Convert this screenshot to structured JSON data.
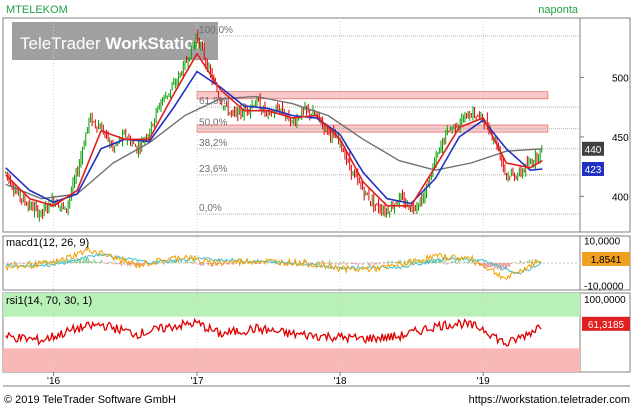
{
  "header": {
    "symbol": "MTELEKOM",
    "interval": "naponta"
  },
  "watermark": {
    "prefix": "TeleTrader ",
    "bold": "WorkStation"
  },
  "footer": {
    "copyright": "© 2019 TeleTrader Software GmbH",
    "url": "https://workstation.teletrader.com"
  },
  "colors": {
    "price_up": "#00a000",
    "price_down": "#e00000",
    "ma_fast": "#e02020",
    "ma_mid": "#2030c0",
    "ma_slow": "#707070",
    "fib_zone": "#f8c8c8",
    "rsi_upper_zone": "#b8f0b8",
    "rsi_lower_zone": "#f8b8b8",
    "rsi_line": "#e00000",
    "macd_line": "#f0a000",
    "signal_line": "#40c0d0"
  },
  "chart_data": [
    {
      "type": "candlestick",
      "title": "MTELEKOM",
      "x_ticks": [
        "'16",
        "'17",
        "'18",
        "'19"
      ],
      "ylim": [
        370,
        550
      ],
      "y_ticks": [
        400,
        450,
        500
      ],
      "price_path": [
        [
          "2015-09-01",
          420
        ],
        [
          "2015-10-01",
          402
        ],
        [
          "2015-11-01",
          392
        ],
        [
          "2015-12-01",
          385
        ],
        [
          "2016-01-01",
          398
        ],
        [
          "2016-02-01",
          388
        ],
        [
          "2016-03-01",
          420
        ],
        [
          "2016-04-01",
          465
        ],
        [
          "2016-05-01",
          458
        ],
        [
          "2016-06-01",
          440
        ],
        [
          "2016-07-01",
          452
        ],
        [
          "2016-08-01",
          440
        ],
        [
          "2016-09-01",
          455
        ],
        [
          "2016-10-01",
          480
        ],
        [
          "2016-11-01",
          492
        ],
        [
          "2016-12-01",
          510
        ],
        [
          "2017-01-01",
          535
        ],
        [
          "2017-02-01",
          505
        ],
        [
          "2017-03-01",
          482
        ],
        [
          "2017-04-01",
          468
        ],
        [
          "2017-05-01",
          472
        ],
        [
          "2017-06-01",
          480
        ],
        [
          "2017-07-01",
          468
        ],
        [
          "2017-08-01",
          474
        ],
        [
          "2017-09-01",
          462
        ],
        [
          "2017-10-01",
          472
        ],
        [
          "2017-11-01",
          468
        ],
        [
          "2017-12-01",
          455
        ],
        [
          "2018-01-01",
          445
        ],
        [
          "2018-02-01",
          420
        ],
        [
          "2018-03-01",
          405
        ],
        [
          "2018-04-01",
          392
        ],
        [
          "2018-05-01",
          388
        ],
        [
          "2018-06-01",
          398
        ],
        [
          "2018-07-01",
          390
        ],
        [
          "2018-08-01",
          398
        ],
        [
          "2018-09-01",
          430
        ],
        [
          "2018-10-01",
          455
        ],
        [
          "2018-11-01",
          462
        ],
        [
          "2018-12-01",
          470
        ],
        [
          "2019-01-01",
          465
        ],
        [
          "2019-02-01",
          448
        ],
        [
          "2019-03-01",
          418
        ],
        [
          "2019-04-01",
          418
        ],
        [
          "2019-05-01",
          428
        ],
        [
          "2019-06-01",
          440
        ]
      ],
      "ma_fast_path": [
        [
          "2015-09-01",
          418
        ],
        [
          "2015-11-01",
          398
        ],
        [
          "2016-01-01",
          392
        ],
        [
          "2016-03-01",
          405
        ],
        [
          "2016-05-01",
          455
        ],
        [
          "2016-07-01",
          448
        ],
        [
          "2016-09-01",
          448
        ],
        [
          "2016-11-01",
          485
        ],
        [
          "2017-01-01",
          520
        ],
        [
          "2017-03-01",
          490
        ],
        [
          "2017-05-01",
          472
        ],
        [
          "2017-07-01",
          472
        ],
        [
          "2017-09-01",
          466
        ],
        [
          "2017-11-01",
          468
        ],
        [
          "2018-01-01",
          448
        ],
        [
          "2018-03-01",
          412
        ],
        [
          "2018-05-01",
          392
        ],
        [
          "2018-07-01",
          392
        ],
        [
          "2018-09-01",
          425
        ],
        [
          "2018-11-01",
          458
        ],
        [
          "2019-01-01",
          466
        ],
        [
          "2019-03-01",
          428
        ],
        [
          "2019-05-01",
          424
        ],
        [
          "2019-06-01",
          430
        ]
      ],
      "ma_mid_path": [
        [
          "2015-09-01",
          424
        ],
        [
          "2015-11-01",
          405
        ],
        [
          "2016-01-01",
          395
        ],
        [
          "2016-03-01",
          402
        ],
        [
          "2016-05-01",
          440
        ],
        [
          "2016-07-01",
          448
        ],
        [
          "2016-09-01",
          446
        ],
        [
          "2016-11-01",
          474
        ],
        [
          "2017-01-01",
          505
        ],
        [
          "2017-03-01",
          492
        ],
        [
          "2017-05-01",
          476
        ],
        [
          "2017-07-01",
          474
        ],
        [
          "2017-09-01",
          468
        ],
        [
          "2017-11-01",
          466
        ],
        [
          "2018-01-01",
          452
        ],
        [
          "2018-03-01",
          420
        ],
        [
          "2018-05-01",
          398
        ],
        [
          "2018-07-01",
          394
        ],
        [
          "2018-09-01",
          415
        ],
        [
          "2018-11-01",
          450
        ],
        [
          "2019-01-01",
          464
        ],
        [
          "2019-03-01",
          440
        ],
        [
          "2019-05-01",
          422
        ],
        [
          "2019-06-01",
          423
        ]
      ],
      "ma_slow_path": [
        [
          "2015-09-01",
          410
        ],
        [
          "2015-12-01",
          398
        ],
        [
          "2016-03-01",
          402
        ],
        [
          "2016-06-01",
          428
        ],
        [
          "2016-09-01",
          445
        ],
        [
          "2016-12-01",
          468
        ],
        [
          "2017-03-01",
          482
        ],
        [
          "2017-06-01",
          484
        ],
        [
          "2017-09-01",
          478
        ],
        [
          "2017-12-01",
          468
        ],
        [
          "2018-03-01",
          448
        ],
        [
          "2018-06-01",
          430
        ],
        [
          "2018-09-01",
          422
        ],
        [
          "2018-12-01",
          428
        ],
        [
          "2019-03-01",
          438
        ],
        [
          "2019-06-01",
          440
        ]
      ],
      "fibonacci": [
        {
          "label": "100,0%",
          "value": 535
        },
        {
          "label": "61,8%",
          "value": 475
        },
        {
          "label": "50,0%",
          "value": 457
        },
        {
          "label": "38,2%",
          "value": 440
        },
        {
          "label": "23,6%",
          "value": 418
        },
        {
          "label": "0,0%",
          "value": 385
        }
      ],
      "highlight_zones": [
        {
          "from": "2017-01-01",
          "to": "2019-06-15",
          "low": 482,
          "high": 488
        },
        {
          "from": "2017-01-01",
          "to": "2019-06-15",
          "low": 454,
          "high": 460
        }
      ],
      "last_price_badges": [
        {
          "text": "440",
          "value": 440,
          "color": "#404040"
        },
        {
          "text": "423",
          "value": 423,
          "color": "#2030c0"
        }
      ]
    },
    {
      "type": "line",
      "title": "macd1(12, 26, 9)",
      "ylim": [
        -12,
        12
      ],
      "y_ticks_text": [
        "10,0000",
        "-10,0000"
      ],
      "y_ticks_values": [
        10,
        -10
      ],
      "last_value_text": "1,8541",
      "macd_line_path": [
        [
          "2015-09-01",
          -2
        ],
        [
          "2016-01-01",
          0
        ],
        [
          "2016-04-01",
          6
        ],
        [
          "2016-08-01",
          -1
        ],
        [
          "2016-12-01",
          3
        ],
        [
          "2017-02-01",
          0
        ],
        [
          "2017-06-01",
          1
        ],
        [
          "2017-10-01",
          0
        ],
        [
          "2018-02-01",
          -3
        ],
        [
          "2018-05-01",
          -2
        ],
        [
          "2018-09-01",
          3
        ],
        [
          "2018-12-01",
          2
        ],
        [
          "2019-03-01",
          -7
        ],
        [
          "2019-06-01",
          2
        ]
      ],
      "signal_line_path": [
        [
          "2015-09-01",
          -1
        ],
        [
          "2016-01-01",
          -1
        ],
        [
          "2016-05-01",
          4
        ],
        [
          "2016-09-01",
          0
        ],
        [
          "2017-01-01",
          2
        ],
        [
          "2017-05-01",
          1
        ],
        [
          "2017-09-01",
          0
        ],
        [
          "2018-01-01",
          -2
        ],
        [
          "2018-06-01",
          -2
        ],
        [
          "2018-10-01",
          2
        ],
        [
          "2019-01-01",
          1
        ],
        [
          "2019-04-01",
          -5
        ],
        [
          "2019-06-01",
          0
        ]
      ]
    },
    {
      "type": "line",
      "title": "rsi1(14, 70, 30, 1)",
      "ylim": [
        0,
        100
      ],
      "y_ticks_text": [
        "100,0000"
      ],
      "y_ticks_values": [
        100
      ],
      "upper_band": 70,
      "lower_band": 30,
      "last_value_text": "61,3185",
      "rsi_path": [
        [
          "2015-09-01",
          45
        ],
        [
          "2015-12-01",
          40
        ],
        [
          "2016-03-01",
          55
        ],
        [
          "2016-05-01",
          60
        ],
        [
          "2016-08-01",
          48
        ],
        [
          "2016-11-01",
          58
        ],
        [
          "2017-01-01",
          62
        ],
        [
          "2017-03-01",
          48
        ],
        [
          "2017-06-01",
          55
        ],
        [
          "2017-09-01",
          48
        ],
        [
          "2017-12-01",
          45
        ],
        [
          "2018-03-01",
          42
        ],
        [
          "2018-06-01",
          45
        ],
        [
          "2018-09-01",
          58
        ],
        [
          "2018-11-01",
          62
        ],
        [
          "2019-01-01",
          55
        ],
        [
          "2019-03-01",
          35
        ],
        [
          "2019-05-01",
          50
        ],
        [
          "2019-06-01",
          61
        ]
      ]
    }
  ]
}
